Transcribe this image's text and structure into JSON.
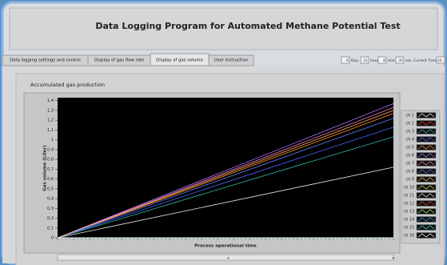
{
  "window": {
    "title": "Data Logging Program for Automated Methane Potential Test"
  },
  "tabs": [
    "Data logging settings and control",
    "Display of gas flow rate",
    "Display of gas volume",
    "User Instruction"
  ],
  "timer": {
    "fields": [
      {
        "value": "6",
        "label": "Day"
      },
      {
        "value": "21",
        "label": "hour"
      },
      {
        "value": "8",
        "label": "min."
      },
      {
        "value": "35",
        "label": "sec."
      }
    ],
    "current_time_label": "Current Time",
    "current_time": "20"
  },
  "panel_title": "Accumulated gas production",
  "chart_data": {
    "type": "line",
    "x_label": "Process operational time",
    "y_label": "Gas volume (Liter)",
    "categories": [
      null,
      null
    ],
    "ylim": [
      0,
      1.43
    ],
    "yticks": [
      0,
      {
        "value": 0.1,
        "label": "0,1"
      },
      {
        "value": 0.2,
        "label": "0,2"
      },
      {
        "value": 0.3,
        "label": "0,3"
      },
      {
        "value": 0.4,
        "label": "0,4"
      },
      {
        "value": 0.5,
        "label": "0,5"
      },
      {
        "value": 0.6,
        "label": "0,6"
      },
      {
        "value": 0.7,
        "label": "0,7"
      },
      {
        "value": 0.8,
        "label": "0,8"
      },
      {
        "value": 0.9,
        "label": "0,9"
      },
      1,
      {
        "value": 1.1,
        "label": "1,1"
      },
      {
        "value": 1.2,
        "label": "1,2"
      },
      {
        "value": 1.3,
        "label": "1,3"
      },
      {
        "value": 1.4,
        "label": "1,4"
      }
    ],
    "series": [
      {
        "name": "ch 1",
        "color": "#f0f0f0",
        "values": [
          0,
          0.72
        ]
      },
      {
        "name": "ch 2",
        "color": "#ff3030",
        "values": [
          0,
          0
        ]
      },
      {
        "name": "ch 3",
        "color": "#30c0b0",
        "values": [
          0,
          1.03
        ]
      },
      {
        "name": "ch 4",
        "color": "#4868ff",
        "values": [
          0,
          1.13
        ]
      },
      {
        "name": "ch 5",
        "color": "#ff9020",
        "values": [
          0,
          1.27
        ]
      },
      {
        "name": "ch 6",
        "color": "#b070ff",
        "values": [
          0,
          1.37
        ]
      },
      {
        "name": "ch 7",
        "color": "#ff80c0",
        "values": [
          0,
          1.33
        ]
      },
      {
        "name": "ch 8",
        "color": "#6080ff",
        "values": [
          0,
          1.22
        ]
      },
      {
        "name": "ch 9",
        "color": "#ffb060",
        "values": [
          0,
          1.3
        ]
      },
      {
        "name": "ch 10",
        "color": "#c8e030",
        "values": [
          0,
          0
        ]
      },
      {
        "name": "ch 11",
        "color": "#e0e0e0",
        "values": [
          0,
          0
        ]
      },
      {
        "name": "ch 12",
        "color": "#e04040",
        "values": [
          0,
          0
        ]
      },
      {
        "name": "ch 13",
        "color": "#a0ff60",
        "values": [
          0,
          0
        ]
      },
      {
        "name": "ch 14",
        "color": "#40a0ff",
        "values": [
          0,
          0
        ]
      },
      {
        "name": "ch 15",
        "color": "#40e0e0",
        "values": [
          0,
          0
        ]
      },
      {
        "name": "ch 16",
        "color": "#ffffff",
        "values": [
          0,
          0
        ]
      }
    ]
  }
}
